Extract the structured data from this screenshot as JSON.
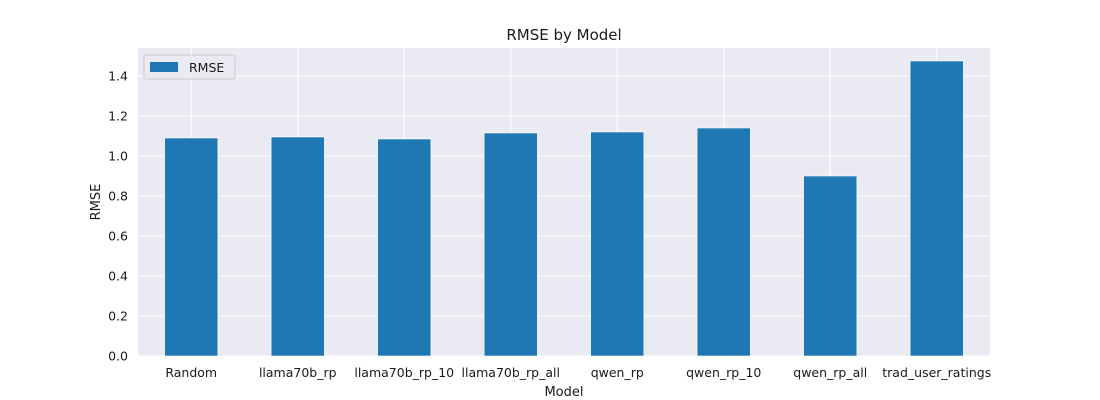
{
  "chart_data": {
    "type": "bar",
    "title": "RMSE by Model",
    "xlabel": "Model",
    "ylabel": "RMSE",
    "categories": [
      "Random",
      "llama70b_rp",
      "llama70b_rp_10",
      "llama70b_rp_all",
      "qwen_rp",
      "qwen_rp_10",
      "qwen_rp_all",
      "trad_user_ratings"
    ],
    "series": [
      {
        "name": "RMSE",
        "values": [
          1.09,
          1.095,
          1.085,
          1.115,
          1.12,
          1.14,
          0.9,
          1.475
        ]
      }
    ],
    "ylim": [
      0,
      1.54
    ],
    "yticks": [
      0.0,
      0.2,
      0.4,
      0.6,
      0.8,
      1.0,
      1.2,
      1.4
    ],
    "ytick_labels": [
      "0.0",
      "0.2",
      "0.4",
      "0.6",
      "0.8",
      "1.0",
      "1.2",
      "1.4"
    ],
    "grid": true,
    "legend": "top-left",
    "colors": {
      "bar": "#1f77b4",
      "plot_background": "#eaeaf2",
      "grid": "#ffffff",
      "text": "#1a1a1a"
    }
  }
}
